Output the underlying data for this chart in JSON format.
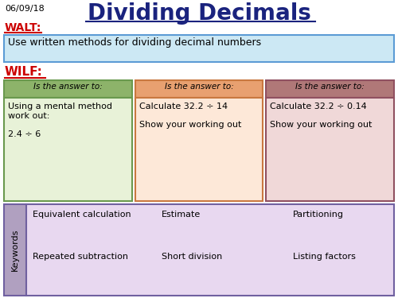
{
  "date": "06/09/18",
  "title": "Dividing Decimals",
  "walt_label": "WALT:",
  "walt_text": "Use written methods for dividing decimal numbers",
  "wilf_label": "WILF:",
  "box_header": "Is the answer to:",
  "box1_content": "Using a mental method\nwork out:\n\n2.4 ÷ 6",
  "box2_content": "Calculate 32.2 ÷ 14\n\nShow your working out",
  "box3_content": "Calculate 32.2 ÷ 0.14\n\nShow your working out",
  "keywords_label": "Keywords",
  "keywords": [
    [
      "Equivalent calculation",
      "Estimate",
      "Partitioning"
    ],
    [
      "Repeated subtraction",
      "Short division",
      "Listing factors"
    ]
  ],
  "colors": {
    "title": "#1a237e",
    "walt_red": "#cc0000",
    "wilf_red": "#cc0000",
    "walt_box_bg": "#cce8f4",
    "walt_box_border": "#5b9bd5",
    "box1_header_bg": "#8db36a",
    "box1_header_border": "#6a994e",
    "box1_body_bg": "#e8f2d8",
    "box1_body_border": "#6a994e",
    "box2_header_bg": "#e8a070",
    "box2_header_border": "#c97840",
    "box2_body_bg": "#fde8d8",
    "box2_body_border": "#c97840",
    "box3_header_bg": "#b07878",
    "box3_header_border": "#905060",
    "box3_body_bg": "#f0d8d8",
    "box3_body_border": "#905060",
    "keywords_label_bg": "#b0a0c0",
    "keywords_label_border": "#7060a0",
    "keywords_body_bg": "#e8d8f0",
    "keywords_body_border": "#7060a0",
    "background": "#ffffff"
  }
}
